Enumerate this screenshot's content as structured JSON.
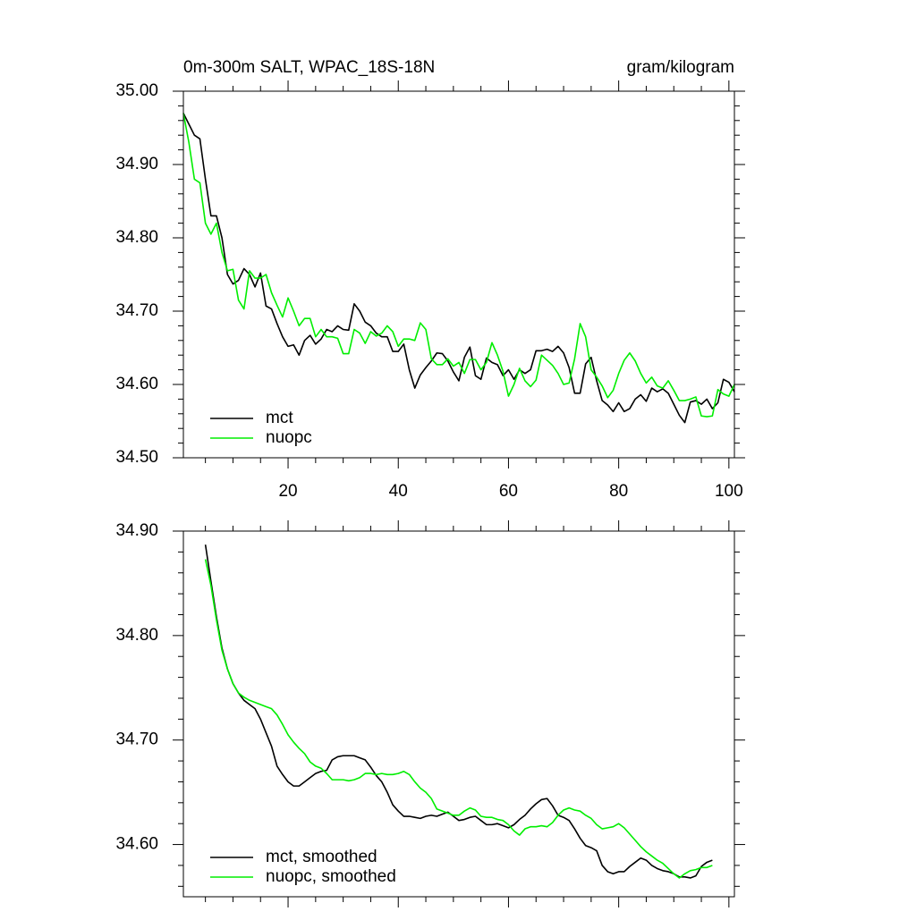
{
  "chart_data": [
    {
      "type": "line",
      "title": "0m-300m SALT, WPAC_18S-18N",
      "units": "gram/kilogram",
      "x": [
        1,
        2,
        3,
        4,
        5,
        6,
        7,
        8,
        9,
        10,
        11,
        12,
        13,
        14,
        15,
        16,
        17,
        18,
        19,
        20,
        21,
        22,
        23,
        24,
        25,
        26,
        27,
        28,
        29,
        30,
        31,
        32,
        33,
        34,
        35,
        36,
        37,
        38,
        39,
        40,
        41,
        42,
        43,
        44,
        45,
        46,
        47,
        48,
        49,
        50,
        51,
        52,
        53,
        54,
        55,
        56,
        57,
        58,
        59,
        60,
        61,
        62,
        63,
        64,
        65,
        66,
        67,
        68,
        69,
        70,
        71,
        72,
        73,
        74,
        75,
        76,
        77,
        78,
        79,
        80,
        81,
        82,
        83,
        84,
        85,
        86,
        87,
        88,
        89,
        90,
        91,
        92,
        93,
        94,
        95,
        96,
        97,
        98,
        99,
        100,
        101
      ],
      "series": [
        {
          "name": "mct",
          "color": "#000000",
          "values": [
            34.97,
            34.955,
            34.94,
            34.935,
            34.88,
            34.83,
            34.83,
            34.8,
            34.75,
            34.737,
            34.742,
            34.758,
            34.75,
            34.733,
            34.752,
            34.707,
            34.703,
            34.683,
            34.665,
            34.652,
            34.654,
            34.64,
            34.66,
            34.667,
            34.655,
            34.662,
            34.675,
            34.672,
            34.68,
            34.675,
            34.674,
            34.71,
            34.7,
            34.685,
            34.68,
            34.67,
            34.665,
            34.665,
            34.645,
            34.645,
            34.655,
            34.62,
            34.595,
            34.613,
            34.623,
            34.632,
            34.643,
            34.642,
            34.632,
            34.617,
            34.605,
            34.637,
            34.651,
            34.612,
            34.607,
            34.636,
            34.63,
            34.627,
            34.612,
            34.62,
            34.607,
            34.62,
            34.615,
            34.62,
            34.646,
            34.646,
            34.648,
            34.645,
            34.652,
            34.643,
            34.623,
            34.588,
            34.588,
            34.628,
            34.637,
            34.605,
            34.578,
            34.572,
            34.563,
            34.575,
            34.563,
            34.567,
            34.58,
            34.586,
            34.577,
            34.595,
            34.59,
            34.594,
            34.588,
            34.573,
            34.558,
            34.548,
            34.576,
            34.578,
            34.573,
            34.58,
            34.567,
            34.575,
            34.607,
            34.603,
            34.59
          ]
        },
        {
          "name": "nuopc",
          "color": "#00ee00",
          "values": [
            34.97,
            34.93,
            34.88,
            34.875,
            34.82,
            34.805,
            34.82,
            34.78,
            34.755,
            34.757,
            34.715,
            34.703,
            34.755,
            34.745,
            34.745,
            34.75,
            34.725,
            34.708,
            34.692,
            34.718,
            34.7,
            34.68,
            34.69,
            34.69,
            34.665,
            34.675,
            34.665,
            34.665,
            34.663,
            34.642,
            34.642,
            34.675,
            34.67,
            34.656,
            34.672,
            34.666,
            34.67,
            34.68,
            34.672,
            34.652,
            34.662,
            34.662,
            34.66,
            34.684,
            34.675,
            34.635,
            34.627,
            34.627,
            34.635,
            34.625,
            34.63,
            34.615,
            34.634,
            34.634,
            34.62,
            34.63,
            34.657,
            34.64,
            34.618,
            34.584,
            34.6,
            34.622,
            34.605,
            34.597,
            34.606,
            34.64,
            34.633,
            34.626,
            34.615,
            34.6,
            34.602,
            34.635,
            34.683,
            34.665,
            34.62,
            34.61,
            34.598,
            34.582,
            34.592,
            34.615,
            34.633,
            34.643,
            34.632,
            34.615,
            34.602,
            34.61,
            34.598,
            34.595,
            34.605,
            34.592,
            34.578,
            34.578,
            34.58,
            34.583,
            34.557,
            34.556,
            34.557,
            34.593,
            34.587,
            34.584,
            34.6
          ]
        }
      ],
      "xlim": [
        1,
        101
      ],
      "xticks": [
        20,
        40,
        60,
        80,
        100
      ],
      "xtick_labels": true,
      "ylim": [
        34.5,
        35.0
      ],
      "yticks": [
        {
          "value": 34.5,
          "label": "34.50"
        },
        {
          "value": 34.6,
          "label": "34.60"
        },
        {
          "value": 34.7,
          "label": "34.70"
        },
        {
          "value": 34.8,
          "label": "34.80"
        },
        {
          "value": 34.9,
          "label": "34.90"
        },
        {
          "value": 35.0,
          "label": "35.00"
        }
      ],
      "legend": "lower left"
    },
    {
      "type": "line",
      "x": [
        5,
        6,
        7,
        8,
        9,
        10,
        11,
        12,
        13,
        14,
        15,
        16,
        17,
        18,
        19,
        20,
        21,
        22,
        23,
        24,
        25,
        26,
        27,
        28,
        29,
        30,
        31,
        32,
        33,
        34,
        35,
        36,
        37,
        38,
        39,
        40,
        41,
        42,
        43,
        44,
        45,
        46,
        47,
        48,
        49,
        50,
        51,
        52,
        53,
        54,
        55,
        56,
        57,
        58,
        59,
        60,
        61,
        62,
        63,
        64,
        65,
        66,
        67,
        68,
        69,
        70,
        71,
        72,
        73,
        74,
        75,
        76,
        77,
        78,
        79,
        80,
        81,
        82,
        83,
        84,
        85,
        86,
        87,
        88,
        89,
        90,
        91,
        92,
        93,
        94,
        95,
        96,
        97
      ],
      "series": [
        {
          "name": "mct, smoothed",
          "color": "#000000",
          "values": [
            34.887,
            34.852,
            34.818,
            34.788,
            34.768,
            34.754,
            34.745,
            34.738,
            34.734,
            34.73,
            34.72,
            34.707,
            34.694,
            34.675,
            34.667,
            34.66,
            34.656,
            34.656,
            34.66,
            34.664,
            34.668,
            34.67,
            34.671,
            34.681,
            34.684,
            34.685,
            34.685,
            34.685,
            34.683,
            34.681,
            34.674,
            34.666,
            34.66,
            34.65,
            34.638,
            34.632,
            34.627,
            34.627,
            34.626,
            34.625,
            34.627,
            34.628,
            34.627,
            34.629,
            34.631,
            34.627,
            34.623,
            34.624,
            34.626,
            34.627,
            34.623,
            34.619,
            34.619,
            34.62,
            34.618,
            34.616,
            34.619,
            34.624,
            34.628,
            34.634,
            34.639,
            34.643,
            34.644,
            34.637,
            34.628,
            34.626,
            34.623,
            34.615,
            34.606,
            34.599,
            34.597,
            34.594,
            34.58,
            34.574,
            34.572,
            34.574,
            34.574,
            34.579,
            34.583,
            34.587,
            34.585,
            34.58,
            34.577,
            34.575,
            34.574,
            34.572,
            34.569,
            34.569,
            34.568,
            34.57,
            34.579,
            34.583,
            34.585
          ]
        },
        {
          "name": "nuopc, smoothed",
          "color": "#00ee00",
          "values": [
            34.873,
            34.848,
            34.815,
            34.786,
            34.768,
            34.754,
            34.745,
            34.741,
            34.738,
            34.736,
            34.734,
            34.732,
            34.73,
            34.724,
            34.715,
            34.705,
            34.698,
            34.692,
            34.687,
            34.679,
            34.675,
            34.673,
            34.668,
            34.662,
            34.662,
            34.662,
            34.661,
            34.662,
            34.664,
            34.668,
            34.668,
            34.667,
            34.668,
            34.667,
            34.667,
            34.668,
            34.67,
            34.667,
            34.66,
            34.654,
            34.65,
            34.644,
            34.634,
            34.632,
            34.63,
            34.628,
            34.628,
            34.632,
            34.635,
            34.633,
            34.627,
            34.626,
            34.626,
            34.624,
            34.623,
            34.619,
            34.613,
            34.609,
            34.615,
            34.617,
            34.617,
            34.618,
            34.617,
            34.621,
            34.628,
            34.633,
            34.635,
            34.633,
            34.632,
            34.628,
            34.625,
            34.619,
            34.615,
            34.616,
            34.617,
            34.62,
            34.616,
            34.61,
            34.604,
            34.598,
            34.593,
            34.589,
            34.585,
            34.582,
            34.577,
            34.572,
            34.568,
            34.572,
            34.575,
            34.576,
            34.578,
            34.578,
            34.58
          ]
        }
      ],
      "xlim": [
        1,
        101
      ],
      "xticks": [
        20,
        40,
        60,
        80,
        100
      ],
      "xtick_labels": false,
      "ylim": [
        34.55,
        34.9
      ],
      "yticks": [
        {
          "value": 34.6,
          "label": "34.60"
        },
        {
          "value": 34.7,
          "label": "34.70"
        },
        {
          "value": 34.8,
          "label": "34.80"
        },
        {
          "value": 34.9,
          "label": "34.90"
        }
      ],
      "legend": "lower left"
    }
  ]
}
